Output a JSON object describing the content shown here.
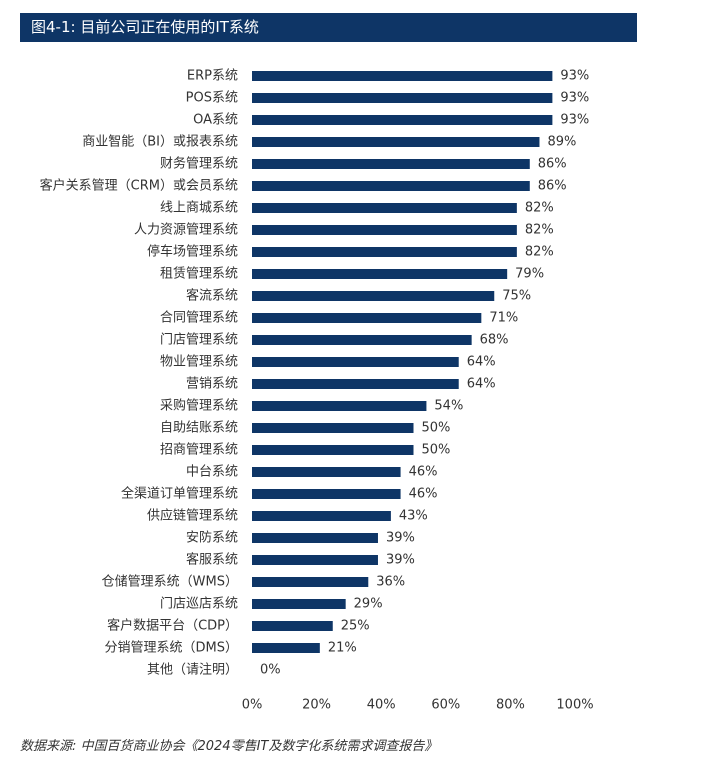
{
  "header": {
    "title": "图4-1: 目前公司正在使用的IT系统"
  },
  "colors": {
    "title_background": "#0e3566",
    "bar": "#0e3566",
    "text": "#333333"
  },
  "chart_data": {
    "type": "bar",
    "orientation": "horizontal",
    "title": "图4-1: 目前公司正在使用的IT系统",
    "categories": [
      "ERP系统",
      "POS系统",
      "OA系统",
      "商业智能（BI）或报表系统",
      "财务管理系统",
      "客户关系管理（CRM）或会员系统",
      "线上商城系统",
      "人力资源管理系统",
      "停车场管理系统",
      "租赁管理系统",
      "客流系统",
      "合同管理系统",
      "门店管理系统",
      "物业管理系统",
      "营销系统",
      "采购管理系统",
      "自助结账系统",
      "招商管理系统",
      "中台系统",
      "全渠道订单管理系统",
      "供应链管理系统",
      "安防系统",
      "客服系统",
      "仓储管理系统（WMS）",
      "门店巡店系统",
      "客户数据平台（CDP）",
      "分销管理系统（DMS）",
      "其他（请注明）"
    ],
    "values": [
      93,
      93,
      93,
      89,
      86,
      86,
      82,
      82,
      82,
      79,
      75,
      71,
      68,
      64,
      64,
      54,
      50,
      50,
      46,
      46,
      43,
      39,
      39,
      36,
      29,
      25,
      21,
      0
    ],
    "value_labels": [
      "93%",
      "93%",
      "93%",
      "89%",
      "86%",
      "86%",
      "82%",
      "82%",
      "82%",
      "79%",
      "75%",
      "71%",
      "68%",
      "64%",
      "64%",
      "54%",
      "50%",
      "50%",
      "46%",
      "46%",
      "43%",
      "39%",
      "39%",
      "36%",
      "29%",
      "25%",
      "21%",
      "0%"
    ],
    "xlim": [
      0,
      100
    ],
    "x_ticks": [
      "0%",
      "20%",
      "40%",
      "60%",
      "80%",
      "100%"
    ],
    "xlabel": "",
    "ylabel": "",
    "grid": false,
    "legend": "none"
  },
  "footer": {
    "source": "数据来源: 中国百货商业协会《2024零售IT及数字化系统需求调查报告》"
  }
}
